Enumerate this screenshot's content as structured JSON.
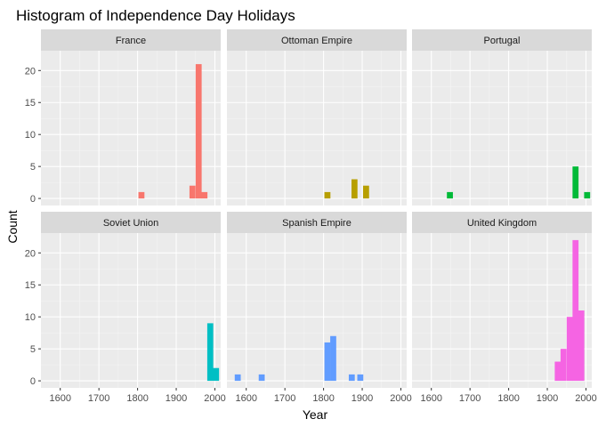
{
  "chart_data": {
    "type": "bar",
    "title": "Histogram of Independence Day Holidays",
    "xlabel": "Year",
    "ylabel": "Count",
    "xlim": [
      1550,
      2015
    ],
    "ylim": [
      -1.1,
      23.1
    ],
    "x_ticks": [
      1600,
      1700,
      1800,
      1900,
      2000
    ],
    "y_ticks": [
      0,
      5,
      10,
      15,
      20
    ],
    "bin_width": 15.5,
    "grid": true,
    "legend": "none",
    "panels": [
      {
        "name": "France",
        "color": "#F8766D",
        "bins": [
          {
            "x": 1810,
            "count": 1
          },
          {
            "x": 1942,
            "count": 2
          },
          {
            "x": 1958,
            "count": 21
          },
          {
            "x": 1973,
            "count": 1
          }
        ]
      },
      {
        "name": "Ottoman Empire",
        "color": "#B79F00",
        "bins": [
          {
            "x": 1810,
            "count": 1
          },
          {
            "x": 1880,
            "count": 3
          },
          {
            "x": 1910,
            "count": 2
          }
        ]
      },
      {
        "name": "Portugal",
        "color": "#00BA38",
        "bins": [
          {
            "x": 1648,
            "count": 1
          },
          {
            "x": 1973,
            "count": 5
          },
          {
            "x": 2003,
            "count": 1
          }
        ]
      },
      {
        "name": "Soviet Union",
        "color": "#00BFC4",
        "bins": [
          {
            "x": 1988,
            "count": 9
          },
          {
            "x": 2003,
            "count": 2
          }
        ]
      },
      {
        "name": "Spanish Empire",
        "color": "#619CFF",
        "bins": [
          {
            "x": 1578,
            "count": 1
          },
          {
            "x": 1640,
            "count": 1
          },
          {
            "x": 1810,
            "count": 6
          },
          {
            "x": 1825,
            "count": 7
          },
          {
            "x": 1873,
            "count": 1
          },
          {
            "x": 1895,
            "count": 1
          }
        ]
      },
      {
        "name": "United Kingdom",
        "color": "#F564E3",
        "bins": [
          {
            "x": 1927,
            "count": 3
          },
          {
            "x": 1942,
            "count": 5
          },
          {
            "x": 1958,
            "count": 10
          },
          {
            "x": 1973,
            "count": 22
          },
          {
            "x": 1988,
            "count": 11
          }
        ]
      }
    ]
  }
}
